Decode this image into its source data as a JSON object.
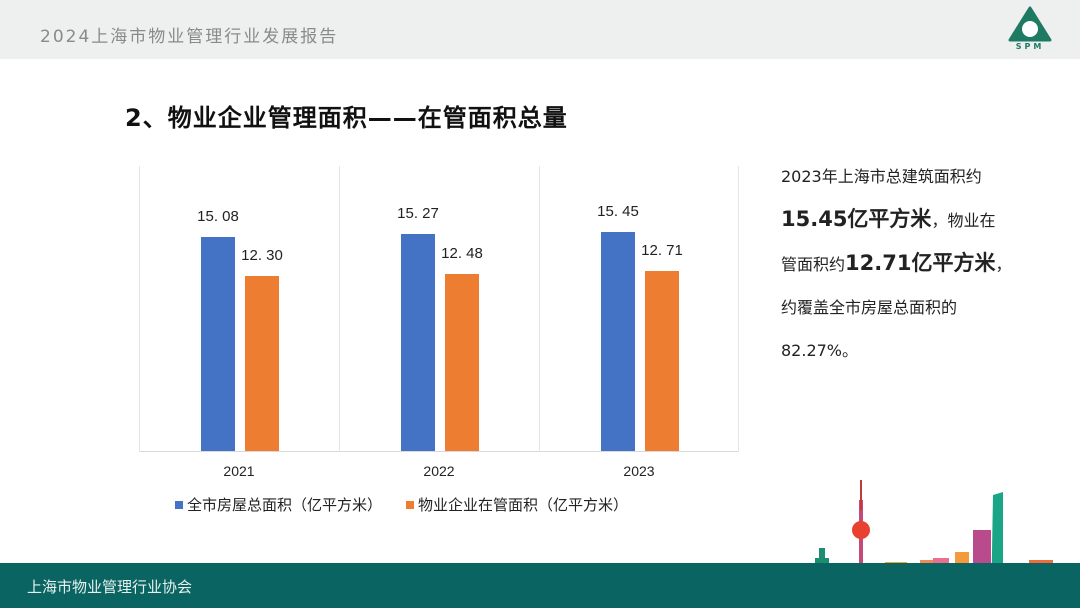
{
  "header": {
    "title": "2024上海市物业管理行业发展报告",
    "logo_text": "SPM"
  },
  "page_title": "2、物业企业管理面积——在管面积总量",
  "side_text": {
    "line1": "2023年上海市总建筑面积约",
    "bold1": "15.45亿平方米",
    "line2": "，物业在",
    "line3": "管面积约",
    "bold2": "12.71亿平方米",
    "line4": "，",
    "line5": "约覆盖全市房屋总面积的",
    "line6": "82.27%。"
  },
  "footer": {
    "text": "上海市物业管理行业协会"
  },
  "colors": {
    "blue": "#4472c4",
    "orange": "#ed7d31",
    "footer": "#0a6562",
    "logo": "#1e7a63"
  },
  "chart_data": {
    "type": "bar",
    "title": "",
    "categories": [
      "2021",
      "2022",
      "2023"
    ],
    "series": [
      {
        "name": "全市房屋总面积（亿平方米）",
        "values": [
          15.08,
          15.27,
          15.45
        ],
        "labels": [
          "15. 08",
          "15. 27",
          "15. 45"
        ],
        "color": "#4472c4"
      },
      {
        "name": "物业企业在管面积（亿平方米）",
        "values": [
          12.3,
          12.48,
          12.71
        ],
        "labels": [
          "12. 30",
          "12. 48",
          "12. 71"
        ],
        "color": "#ed7d31"
      }
    ],
    "xlabel": "",
    "ylabel": "",
    "ylim": [
      0,
      20
    ],
    "grid": false,
    "legend_position": "bottom"
  }
}
